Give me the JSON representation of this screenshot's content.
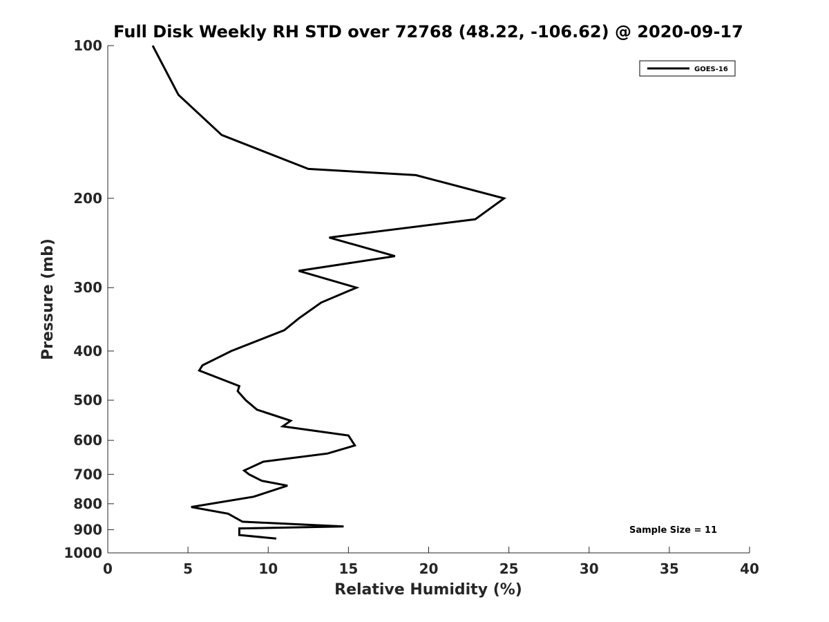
{
  "chart_data": {
    "type": "line",
    "title": "Full Disk Weekly RH STD over 72768 (48.22, -106.62) @ 2020-09-17",
    "xlabel": "Relative Humidity (%)",
    "ylabel": "Pressure (mb)",
    "xlim": [
      0,
      40
    ],
    "ylim": [
      1000,
      100
    ],
    "yscale": "log",
    "y_reversed": true,
    "grid": false,
    "legend_position": "top-right",
    "xticks": [
      0,
      5,
      10,
      15,
      20,
      25,
      30,
      35,
      40
    ],
    "xtick_labels": [
      "0",
      "5",
      "10",
      "15",
      "20",
      "25",
      "30",
      "35",
      "40"
    ],
    "yticks": [
      100,
      200,
      300,
      400,
      500,
      600,
      700,
      800,
      900,
      1000
    ],
    "ytick_labels": [
      "100",
      "200",
      "300",
      "400",
      "500",
      "600",
      "700",
      "800",
      "900",
      "1000"
    ],
    "series": [
      {
        "name": "GOES-16",
        "color": "#000000",
        "points": [
          [
            2.8,
            100
          ],
          [
            4.4,
            125
          ],
          [
            7.1,
            150
          ],
          [
            12.5,
            175
          ],
          [
            19.2,
            180
          ],
          [
            24.7,
            200
          ],
          [
            22.9,
            220
          ],
          [
            13.8,
            239
          ],
          [
            17.9,
            260
          ],
          [
            11.9,
            278
          ],
          [
            15.5,
            300
          ],
          [
            13.3,
            321
          ],
          [
            11.9,
            345
          ],
          [
            11.0,
            364
          ],
          [
            7.7,
            400
          ],
          [
            5.9,
            427
          ],
          [
            5.7,
            437
          ],
          [
            8.2,
            469
          ],
          [
            8.1,
            480
          ],
          [
            8.6,
            500
          ],
          [
            9.3,
            522
          ],
          [
            11.4,
            549
          ],
          [
            10.9,
            563
          ],
          [
            15.0,
            587
          ],
          [
            15.4,
            614
          ],
          [
            13.7,
            637
          ],
          [
            9.7,
            661
          ],
          [
            8.5,
            688
          ],
          [
            8.8,
            700
          ],
          [
            9.6,
            721
          ],
          [
            11.2,
            737
          ],
          [
            9.1,
            775
          ],
          [
            5.2,
            812
          ],
          [
            7.5,
            837
          ],
          [
            8.4,
            868
          ],
          [
            14.7,
            887
          ],
          [
            8.2,
            895
          ],
          [
            8.2,
            922
          ],
          [
            10.5,
            937
          ]
        ]
      }
    ],
    "annotation": "Sample Size = 11"
  }
}
